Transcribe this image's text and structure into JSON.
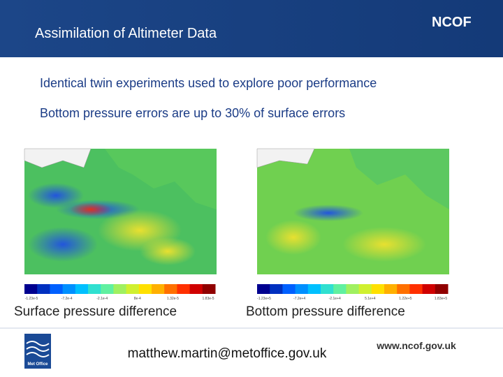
{
  "header": {
    "title": "Assimilation of Altimeter Data",
    "logo": "NCOF"
  },
  "bullets": [
    "Identical twin experiments used to explore poor performance",
    "Bottom pressure errors are up to 30% of surface errors"
  ],
  "figures": [
    {
      "colorbar_labels": [
        "-1.23e-5",
        "-7.2e-4",
        "-2.1e-4",
        "8e-4",
        "1.32e-5",
        "1.83e-5"
      ],
      "caption": "Surface pressure difference"
    },
    {
      "colorbar_labels": [
        "-1.23e+5",
        "-7.2e+4",
        "-2.1e+4",
        "5.1e+4",
        "1.22e+5",
        "1.83e+5"
      ],
      "caption": "Bottom pressure difference"
    }
  ],
  "footer": {
    "logo": "Met Office",
    "email": "matthew.martin@metoffice.gov.uk",
    "website": "www.ncof.gov.uk"
  }
}
